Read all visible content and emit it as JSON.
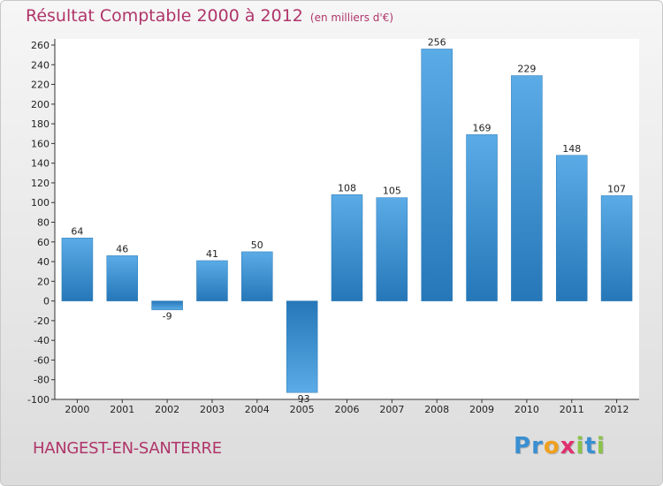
{
  "chart_data": {
    "type": "bar",
    "title": "Résultat Comptable 2000 à 2012",
    "subtitle": "(en milliers d'€)",
    "categories": [
      "2000",
      "2001",
      "2002",
      "2003",
      "2004",
      "2005",
      "2006",
      "2007",
      "2008",
      "2009",
      "2010",
      "2011",
      "2012"
    ],
    "values": [
      64,
      46,
      -9,
      41,
      50,
      -93,
      108,
      105,
      256,
      169,
      229,
      148,
      107
    ],
    "ylim": [
      -100,
      260
    ],
    "yticks": [
      260,
      240,
      220,
      200,
      180,
      160,
      140,
      120,
      100,
      80,
      60,
      40,
      20,
      0,
      -20,
      -40,
      -60,
      -80,
      -100
    ],
    "xlabel": "",
    "ylabel": "",
    "grid": false,
    "bar_color": "#3a8fd2"
  },
  "location": "HANGEST-EN-SANTERRE",
  "logo": {
    "letters": [
      "P",
      "r",
      "o",
      "x",
      "i",
      "t",
      "i"
    ],
    "colors": [
      "#3a8fd2",
      "#3a8fd2",
      "#f0a020",
      "#e03070",
      "#8bc34a",
      "#3a8fd2",
      "#8bc34a"
    ]
  }
}
